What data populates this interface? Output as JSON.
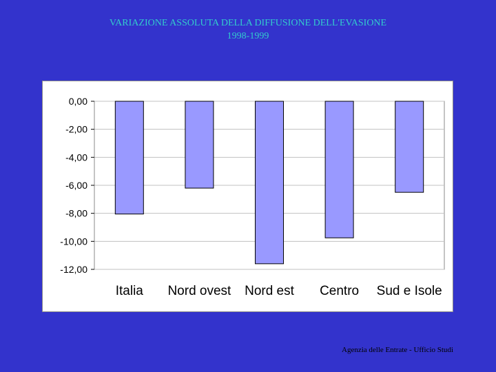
{
  "slide": {
    "title_line1": "VARIAZIONE ASSOLUTA DELLA DIFFUSIONE DELL'EVASIONE",
    "title_line2": "1998-1999",
    "footer": "Agenzia delle Entrate - Ufficio Studi"
  },
  "colors": {
    "background": "#3333cc",
    "title": "#33cccc",
    "bar_fill": "#9999ff",
    "bar_stroke": "#000000",
    "gridline": "#c0c0c0"
  },
  "chart_data": {
    "type": "bar",
    "title": "",
    "xlabel": "",
    "ylabel": "",
    "categories": [
      "Italia",
      "Nord ovest",
      "Nord est",
      "Centro",
      "Sud e Isole"
    ],
    "values": [
      -8.05,
      -6.2,
      -11.6,
      -9.75,
      -6.5
    ],
    "ylim": [
      -12,
      0
    ],
    "yticks": [
      0,
      -2,
      -4,
      -6,
      -8,
      -10,
      -12
    ],
    "ytick_labels": [
      "0,00",
      "-2,00",
      "-4,00",
      "-6,00",
      "-8,00",
      "-10,00",
      "-12,00"
    ],
    "grid": true,
    "legend": "none"
  }
}
